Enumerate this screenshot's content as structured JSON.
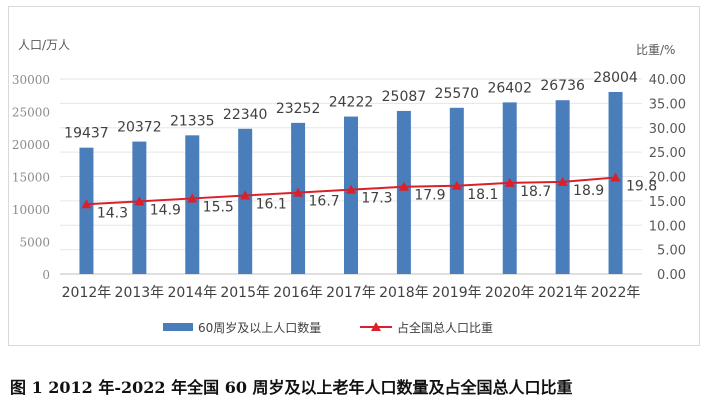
{
  "chart_data": {
    "type": "bar+line",
    "categories": [
      "2012年",
      "2013年",
      "2014年",
      "2015年",
      "2016年",
      "2017年",
      "2018年",
      "2019年",
      "2020年",
      "2021年",
      "2022年"
    ],
    "series": [
      {
        "name": "60周岁及以上人口数量",
        "type": "bar",
        "axis": "left",
        "color": "#4a7ebb",
        "values": [
          19437,
          20372,
          21335,
          22340,
          23252,
          24222,
          25087,
          25570,
          26402,
          26736,
          28004
        ]
      },
      {
        "name": "占全国总人口比重",
        "type": "line",
        "axis": "right",
        "color": "#d9202b",
        "marker": "triangle",
        "values": [
          14.3,
          14.9,
          15.5,
          16.1,
          16.7,
          17.3,
          17.9,
          18.1,
          18.7,
          18.9,
          19.8
        ]
      }
    ],
    "ylabel_left": "人口/万人",
    "ylabel_right": "比重/%",
    "ylim_left": [
      0,
      30000
    ],
    "ylim_right": [
      0,
      40
    ],
    "yticks_left": [
      "0",
      "5000",
      "10000",
      "15000",
      "20000",
      "25000",
      "30000"
    ],
    "yticks_right": [
      "0.00",
      "5.00",
      "10.00",
      "15.00",
      "20.00",
      "25.00",
      "30.00",
      "35.00",
      "40.00"
    ],
    "grid": true,
    "legend": "bottom"
  },
  "caption": "图 1  2012 年-2022 年全国 60 周岁及以上老年人口数量及占全国总人口比重"
}
